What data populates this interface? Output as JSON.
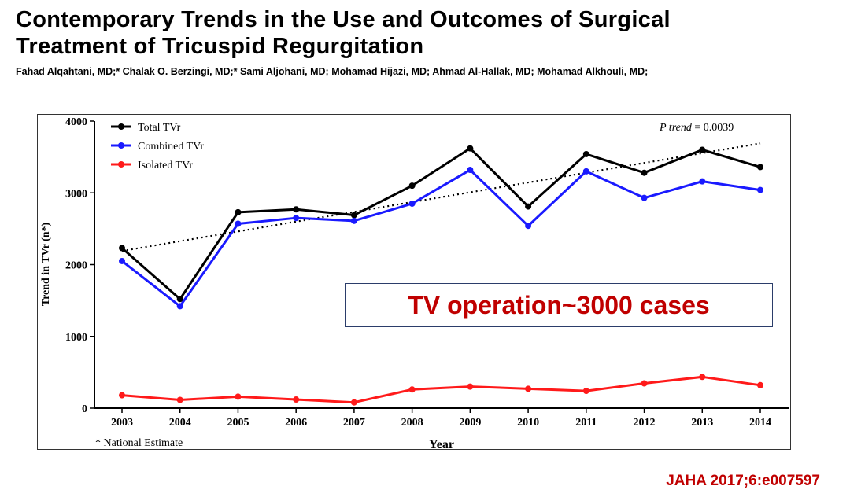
{
  "header": {
    "title_line1": "Contemporary Trends in the Use and Outcomes of Surgical",
    "title_line2": "Treatment of Tricuspid Regurgitation",
    "authors": "Fahad Alqahtani, MD;* Chalak O. Berzingi, MD;* Sami Aljohani, MD; Mohamad Hijazi, MD; Ahmad Al-Hallak, MD; Mohamad Alkhouli, MD;"
  },
  "callout": {
    "text": "TV operation~3000 cases"
  },
  "citation": "JAHA 2017;6:e007597",
  "chart_data": {
    "type": "line",
    "title": "",
    "xlabel": "Year",
    "ylabel": "Trend in TVr (n*)",
    "categories": [
      "2003",
      "2004",
      "2005",
      "2006",
      "2007",
      "2008",
      "2009",
      "2010",
      "2011",
      "2012",
      "2013",
      "2014"
    ],
    "ylim": [
      0,
      4000
    ],
    "yticks": [
      0,
      1000,
      2000,
      3000,
      4000
    ],
    "series": [
      {
        "name": "Total TVr",
        "color": "#000000",
        "values": [
          2230,
          1520,
          2730,
          2770,
          2690,
          3100,
          3620,
          2810,
          3540,
          3280,
          3600,
          3360
        ]
      },
      {
        "name": "Combined TVr",
        "color": "#1a1aff",
        "values": [
          2050,
          1420,
          2570,
          2650,
          2610,
          2850,
          3320,
          2540,
          3300,
          2930,
          3160,
          3040
        ]
      },
      {
        "name": "Isolated TVr",
        "color": "#ff1a1a",
        "values": [
          180,
          115,
          160,
          120,
          80,
          260,
          300,
          270,
          240,
          345,
          435,
          320
        ]
      }
    ],
    "trendline": {
      "style": "dotted",
      "start": {
        "x": "2003",
        "y": 2190
      },
      "end": {
        "x": "2014",
        "y": 3690
      }
    },
    "annotations": {
      "p_trend_label": "P trend",
      "p_trend_value": "= 0.0039",
      "footnote": "* National Estimate"
    },
    "legend_position": "top-left",
    "grid": false
  }
}
